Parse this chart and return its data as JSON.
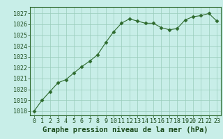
{
  "x": [
    0,
    1,
    2,
    3,
    4,
    5,
    6,
    7,
    8,
    9,
    10,
    11,
    12,
    13,
    14,
    15,
    16,
    17,
    18,
    19,
    20,
    21,
    22,
    23
  ],
  "y": [
    1018.0,
    1019.0,
    1019.8,
    1020.6,
    1020.9,
    1021.5,
    1022.1,
    1022.6,
    1023.2,
    1024.3,
    1025.3,
    1026.1,
    1026.5,
    1026.3,
    1026.1,
    1026.1,
    1025.7,
    1025.5,
    1025.6,
    1026.4,
    1026.7,
    1026.8,
    1027.0,
    1026.3
  ],
  "line_color": "#2d6a2d",
  "marker_style": "D",
  "marker_size": 2.5,
  "bg_color": "#c8eee8",
  "grid_color": "#99ccbb",
  "xlabel": "Graphe pression niveau de la mer (hPa)",
  "xlabel_color": "#1a4a1a",
  "xlabel_fontsize": 7.5,
  "yticks": [
    1018,
    1019,
    1020,
    1021,
    1022,
    1023,
    1024,
    1025,
    1026,
    1027
  ],
  "xticks": [
    0,
    1,
    2,
    3,
    4,
    5,
    6,
    7,
    8,
    9,
    10,
    11,
    12,
    13,
    14,
    15,
    16,
    17,
    18,
    19,
    20,
    21,
    22,
    23
  ],
  "ylim": [
    1017.6,
    1027.6
  ],
  "xlim": [
    -0.5,
    23.5
  ],
  "tick_fontsize": 6.0,
  "tick_color": "#1a4a1a",
  "spine_color": "#2d6a2d"
}
